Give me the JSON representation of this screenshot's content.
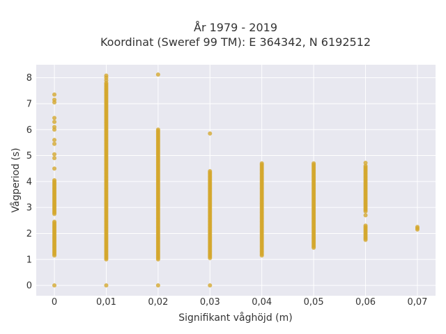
{
  "chart_data": {
    "type": "scatter",
    "title": "År 1979 - 2019",
    "subtitle": "Koordinat (Sweref 99 TM): E 364342, N 6192512",
    "xlabel": "Signifikant våghöjd (m)",
    "ylabel": "Vågperiod (s)",
    "x_ticks": [
      "0",
      "0,01",
      "0,02",
      "0,03",
      "0,04",
      "0,05",
      "0,06",
      "0,07"
    ],
    "y_ticks": [
      "0",
      "1",
      "2",
      "3",
      "4",
      "5",
      "6",
      "7",
      "8"
    ],
    "xlim": [
      -0.0035,
      0.0735
    ],
    "ylim": [
      -0.4,
      8.5
    ],
    "grid": true,
    "background": "#e8e8f0",
    "point_color": "#d4a72c",
    "clusters": [
      {
        "x": 0.0,
        "ranges": [
          [
            1.15,
            2.45
          ],
          [
            2.75,
            4.05
          ]
        ],
        "points": [
          0.0,
          4.5,
          4.9,
          5.05,
          5.45,
          5.6,
          6.0,
          6.1,
          6.3,
          6.45,
          7.05,
          7.15,
          7.35
        ]
      },
      {
        "x": 0.01,
        "ranges": [
          [
            1.0,
            7.8
          ]
        ],
        "points": [
          0.0,
          7.9,
          8.0,
          8.08
        ]
      },
      {
        "x": 0.02,
        "ranges": [
          [
            1.0,
            6.0
          ]
        ],
        "points": [
          0.0,
          8.12
        ]
      },
      {
        "x": 0.03,
        "ranges": [
          [
            1.05,
            4.42
          ]
        ],
        "points": [
          0.0,
          5.85
        ]
      },
      {
        "x": 0.04,
        "ranges": [
          [
            1.15,
            4.7
          ]
        ],
        "points": []
      },
      {
        "x": 0.05,
        "ranges": [
          [
            1.45,
            4.72
          ]
        ],
        "points": []
      },
      {
        "x": 0.06,
        "ranges": [
          [
            1.75,
            2.3
          ],
          [
            2.85,
            4.6
          ]
        ],
        "points": [
          2.7,
          4.72
        ]
      },
      {
        "x": 0.07,
        "ranges": [
          [
            2.15,
            2.28
          ]
        ],
        "points": []
      }
    ]
  }
}
